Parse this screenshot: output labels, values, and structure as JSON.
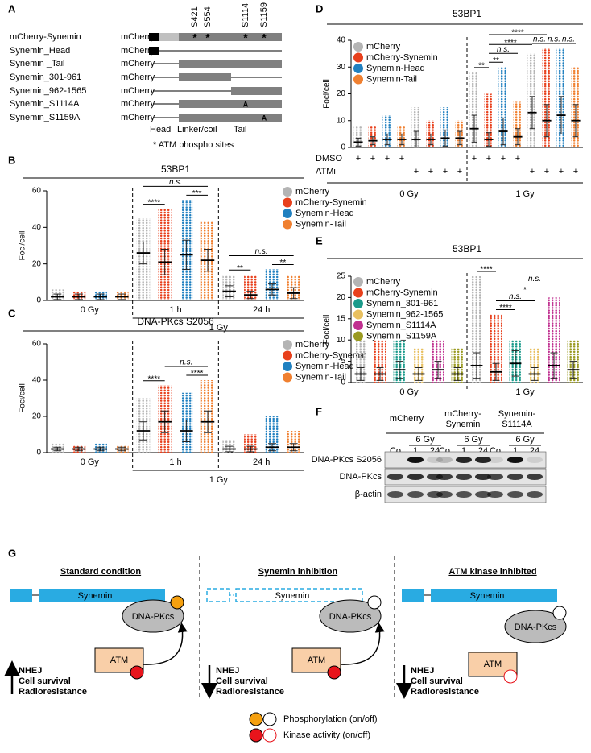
{
  "panel_labels": [
    "A",
    "B",
    "C",
    "D",
    "E",
    "F",
    "G"
  ],
  "panel_a": {
    "vector_label": "mCherry",
    "constructs": [
      {
        "name": "mCherry-Synemin",
        "color": "#e8401c"
      },
      {
        "name": "Synemin_Head",
        "color": "#2080c0"
      },
      {
        "name": "Synemin _Tail",
        "color": "#f08030"
      },
      {
        "name": "Synemin_301-961",
        "color": "#1a9a8a"
      },
      {
        "name": "Synemin_962-1565",
        "color": "#e8c060"
      },
      {
        "name": "Synemin_S1114A",
        "color": "#c03090",
        "mutation_mark": "A"
      },
      {
        "name": "Synemin_S1159A",
        "color": "#9a9a20",
        "mutation_mark": "A"
      }
    ],
    "sites": [
      "S421",
      "S554",
      "S1114",
      "S1159"
    ],
    "site_mark": "*",
    "domains": [
      "Head",
      "Linker/coil",
      "Tail"
    ],
    "note": "* ATM phospho sites"
  },
  "chart_data": [
    {
      "type": "dot_plot",
      "title": "53BP1",
      "ylabel": "Foci/cell",
      "categories": [
        "0 Gy",
        "1 h",
        "24 h"
      ],
      "group_label": "1 Gy",
      "ylim": [
        0,
        60
      ],
      "yticks": [
        0,
        20,
        40,
        60
      ],
      "series": [
        {
          "name": "mCherry",
          "color": "#b4b4b4",
          "values": [
            2,
            26,
            5
          ],
          "sd": [
            1.5,
            6,
            3
          ],
          "max": [
            6,
            45,
            14
          ]
        },
        {
          "name": "mCherry-Synemin",
          "color": "#e8401c",
          "values": [
            2,
            21,
            3
          ],
          "sd": [
            1.5,
            7,
            2
          ],
          "max": [
            5,
            50,
            14
          ]
        },
        {
          "name": "Synemin-Head",
          "color": "#2080c0",
          "values": [
            2,
            25,
            6
          ],
          "sd": [
            1.5,
            8,
            3
          ],
          "max": [
            5,
            55,
            17
          ]
        },
        {
          "name": "Synemin-Tail",
          "color": "#f08030",
          "values": [
            2,
            22,
            4
          ],
          "sd": [
            1.5,
            6,
            3
          ],
          "max": [
            5,
            43,
            14
          ]
        }
      ],
      "annotations": [
        {
          "text": "****",
          "from": [
            1,
            0
          ],
          "to": [
            1,
            1
          ]
        },
        {
          "text": "***",
          "from": [
            1,
            2
          ],
          "to": [
            1,
            3
          ]
        },
        {
          "text": "n.s.",
          "from": [
            1,
            0
          ],
          "to": [
            1,
            3
          ]
        },
        {
          "text": "**",
          "from": [
            2,
            0
          ],
          "to": [
            2,
            1
          ]
        },
        {
          "text": "**",
          "from": [
            2,
            2
          ],
          "to": [
            2,
            3
          ]
        },
        {
          "text": "n.s.",
          "from": [
            2,
            0
          ],
          "to": [
            2,
            3
          ]
        }
      ]
    },
    {
      "type": "dot_plot",
      "title": "DNA-PKcs S2056",
      "ylabel": "Foci/cell",
      "categories": [
        "0 Gy",
        "1 h",
        "24 h"
      ],
      "group_label": "1 Gy",
      "ylim": [
        0,
        60
      ],
      "yticks": [
        0,
        20,
        40,
        60
      ],
      "series": [
        {
          "name": "mCherry",
          "color": "#b4b4b4",
          "values": [
            2,
            12,
            2
          ],
          "sd": [
            1,
            5,
            1.5
          ],
          "max": [
            5,
            30,
            7
          ]
        },
        {
          "name": "mCherry-Synemin",
          "color": "#e8401c",
          "values": [
            2,
            17,
            2
          ],
          "sd": [
            1,
            6,
            1.5
          ],
          "max": [
            4,
            37,
            10
          ]
        },
        {
          "name": "Synemin-Head",
          "color": "#2080c0",
          "values": [
            2,
            12,
            3
          ],
          "sd": [
            1,
            6,
            2
          ],
          "max": [
            5,
            33,
            20
          ]
        },
        {
          "name": "Synemin-Tail",
          "color": "#f08030",
          "values": [
            2,
            17,
            3
          ],
          "sd": [
            1,
            6,
            2
          ],
          "max": [
            4,
            40,
            12
          ]
        }
      ],
      "annotations": [
        {
          "text": "****",
          "from": [
            1,
            0
          ],
          "to": [
            1,
            1
          ]
        },
        {
          "text": "****",
          "from": [
            1,
            2
          ],
          "to": [
            1,
            3
          ]
        },
        {
          "text": "n.s.",
          "from": [
            1,
            1
          ],
          "to": [
            1,
            3
          ]
        }
      ]
    },
    {
      "type": "dot_plot",
      "title": "53BP1",
      "ylabel": "Foci/cell",
      "categories": [
        null,
        null,
        null,
        null
      ],
      "treatment_rows": [
        {
          "label": "DMSO",
          "signs": [
            "+",
            null,
            "+",
            null
          ]
        },
        {
          "label": "ATMi",
          "signs": [
            null,
            "+",
            null,
            "+"
          ]
        }
      ],
      "dose_labels": [
        "0 Gy",
        "1 Gy"
      ],
      "ylim": [
        0,
        40
      ],
      "yticks": [
        0,
        10,
        20,
        30,
        40
      ],
      "series": [
        {
          "name": "mCherry",
          "color": "#b4b4b4",
          "values": [
            2,
            3,
            7,
            13
          ],
          "sd": [
            1.5,
            3,
            5,
            6
          ],
          "max": [
            8,
            15,
            28,
            35
          ]
        },
        {
          "name": "mCherry-Synemin",
          "color": "#e8401c",
          "values": [
            2.5,
            3,
            3,
            10
          ],
          "sd": [
            1.5,
            2,
            2.5,
            6
          ],
          "max": [
            8,
            10,
            20,
            37
          ]
        },
        {
          "name": "Synemin-Head",
          "color": "#2080c0",
          "values": [
            3,
            3.5,
            6,
            12
          ],
          "sd": [
            2,
            3,
            5,
            7
          ],
          "max": [
            12,
            15,
            30,
            37
          ]
        },
        {
          "name": "Synemin-Tail",
          "color": "#f08030",
          "values": [
            3,
            3.5,
            4,
            10
          ],
          "sd": [
            2,
            2.5,
            3,
            6
          ],
          "max": [
            8,
            10,
            17,
            30
          ]
        }
      ],
      "annotations": [
        {
          "text": "**",
          "from": [
            2,
            0
          ],
          "to": [
            2,
            1
          ]
        },
        {
          "text": "**",
          "from": [
            2,
            1
          ],
          "to": [
            2,
            2
          ]
        },
        {
          "text": "n.s.",
          "from": [
            2,
            1
          ],
          "to": [
            2,
            3
          ]
        },
        {
          "text": "n.s.",
          "from": [
            3,
            0
          ],
          "to": [
            3,
            1
          ]
        },
        {
          "text": "n.s.",
          "from": [
            3,
            1
          ],
          "to": [
            3,
            2
          ]
        },
        {
          "text": "n.s.",
          "from": [
            3,
            2
          ],
          "to": [
            3,
            3
          ]
        },
        {
          "text": "****",
          "from": [
            2,
            1
          ],
          "to": [
            3,
            0
          ]
        },
        {
          "text": "****",
          "from": [
            2,
            1
          ],
          "to": [
            3,
            1
          ]
        }
      ]
    },
    {
      "type": "dot_plot",
      "title": "53BP1",
      "ylabel": "Foci/cell",
      "categories": [
        "0 Gy",
        "1 Gy"
      ],
      "ylim": [
        0,
        25
      ],
      "yticks": [
        0,
        5,
        10,
        15,
        20,
        25
      ],
      "series": [
        {
          "name": "mCherry",
          "color": "#b4b4b4",
          "values": [
            2,
            4
          ],
          "sd": [
            1.5,
            3
          ],
          "max": [
            10,
            25
          ]
        },
        {
          "name": "mCherry-Synemin",
          "color": "#e8401c",
          "values": [
            2,
            2.5
          ],
          "sd": [
            1.5,
            2
          ],
          "max": [
            10,
            16
          ]
        },
        {
          "name": "Synemin_301-961",
          "color": "#1a9a8a",
          "values": [
            3,
            4.5
          ],
          "sd": [
            2,
            3
          ],
          "max": [
            10,
            10
          ]
        },
        {
          "name": "Synemin_962-1565",
          "color": "#e8c060",
          "values": [
            2,
            2
          ],
          "sd": [
            1.5,
            1.5
          ],
          "max": [
            8,
            8
          ]
        },
        {
          "name": "Synemin_S1114A",
          "color": "#c03090",
          "values": [
            3,
            4
          ],
          "sd": [
            2,
            3
          ],
          "max": [
            10,
            20
          ]
        },
        {
          "name": "Synemin_S1159A",
          "color": "#9a9a20",
          "values": [
            2,
            3
          ],
          "sd": [
            1.5,
            2
          ],
          "max": [
            8,
            10
          ]
        }
      ],
      "annotations": [
        {
          "text": "****",
          "from": [
            1,
            0
          ],
          "to": [
            1,
            1
          ]
        },
        {
          "text": "****",
          "from": [
            1,
            1
          ],
          "to": [
            1,
            2
          ]
        },
        {
          "text": "n.s.",
          "from": [
            1,
            1
          ],
          "to": [
            1,
            3
          ]
        },
        {
          "text": "*",
          "from": [
            1,
            1
          ],
          "to": [
            1,
            4
          ]
        },
        {
          "text": "n.s.",
          "from": [
            1,
            1
          ],
          "to": [
            1,
            5
          ]
        }
      ]
    }
  ],
  "panel_f": {
    "groups": [
      {
        "lines": [
          "mCherry"
        ],
        "color": "#a0a0a0",
        "dose": "6 Gy",
        "lanes": [
          "Co",
          "1",
          "24"
        ]
      },
      {
        "lines": [
          "mCherry-",
          "Synemin"
        ],
        "color": "#e8401c",
        "dose": "6 Gy",
        "lanes": [
          "Co",
          "1",
          "24"
        ]
      },
      {
        "lines": [
          "Synemin-",
          "S1114A"
        ],
        "color": "#c03090",
        "dose": "6 Gy",
        "lanes": [
          "Co",
          "1",
          "24"
        ]
      }
    ],
    "rows": [
      "DNA-PKcs S2056",
      "DNA-PKcs",
      "β-actin"
    ]
  },
  "panel_g": {
    "panels": [
      {
        "title": "Standard condition",
        "protein": "Synemin",
        "target": "DNA-PKcs",
        "kinase": "ATM",
        "outcomes": [
          "NHEJ",
          "Cell survival",
          "Radioresistance"
        ]
      },
      {
        "title": "Synemin inhibition",
        "protein": "Synemin",
        "target": "DNA-PKcs",
        "kinase": "ATM",
        "outcomes": [
          "NHEJ",
          "Cell survival",
          "Radioresistance"
        ]
      },
      {
        "title": "ATM kinase inhibited",
        "protein": "Synemin",
        "target": "DNA-PKcs",
        "kinase": "ATM",
        "outcomes": [
          "NHEJ",
          "Cell survival",
          "Radioresistance"
        ]
      }
    ],
    "legend": [
      "Phosphorylation (on/off)",
      "Kinase activity (on/off)"
    ]
  }
}
